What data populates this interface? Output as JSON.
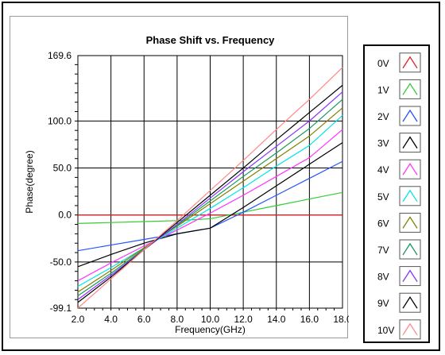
{
  "chart_data": {
    "type": "line",
    "title": "Phase Shift vs. Frequency",
    "xlabel": "Frequency(GHz)",
    "ylabel": "Phase(degree)",
    "xlim": [
      2.0,
      18.0
    ],
    "ylim": [
      -99.1,
      169.6
    ],
    "x_ticks": [
      "2.0",
      "4.0",
      "6.0",
      "8.0",
      "10.0",
      "12.0",
      "14.0",
      "16.0",
      "18.0"
    ],
    "y_ticks": [
      "169.6",
      "100.0",
      "50.0",
      "0.0",
      "-50.0",
      "-99.1"
    ],
    "grid": true,
    "legend_placement": "right",
    "x": [
      2,
      4,
      6,
      8,
      10,
      12,
      14,
      16,
      18
    ],
    "series": [
      {
        "name": "0V",
        "color": "#e02020",
        "values": [
          0,
          0,
          0,
          0,
          0,
          0,
          0,
          0,
          0
        ]
      },
      {
        "name": "1V",
        "color": "#33cc33",
        "values": [
          -9,
          -8,
          -7,
          -6,
          -4,
          3,
          10,
          17,
          24
        ]
      },
      {
        "name": "2V",
        "color": "#2255ff",
        "values": [
          -38,
          -32,
          -26,
          -20,
          -14,
          3,
          21,
          39,
          57
        ]
      },
      {
        "name": "3V",
        "color": "#000000",
        "values": [
          -55,
          -42,
          -30,
          -20,
          -14,
          8,
          31,
          54,
          77
        ]
      },
      {
        "name": "4V",
        "color": "#ff33ff",
        "values": [
          -70,
          -51,
          -33,
          -16,
          2,
          21,
          41,
          61,
          91
        ]
      },
      {
        "name": "5V",
        "color": "#00e5e5",
        "values": [
          -76,
          -56,
          -35,
          -14,
          7,
          29,
          52,
          74,
          106
        ]
      },
      {
        "name": "6V",
        "color": "#808000",
        "values": [
          -82,
          -59,
          -35,
          -12,
          12,
          36,
          60,
          84,
          114
        ]
      },
      {
        "name": "7V",
        "color": "#1a9a5a",
        "values": [
          -86,
          -62,
          -36,
          -11,
          15,
          41,
          66,
          92,
          123
        ]
      },
      {
        "name": "8V",
        "color": "#8833ff",
        "values": [
          -90,
          -64,
          -37,
          -10,
          18,
          46,
          73,
          100,
          131
        ]
      },
      {
        "name": "9V",
        "color": "#000000",
        "values": [
          -93,
          -66,
          -37,
          -8,
          21,
          50,
          80,
          109,
          138
        ]
      },
      {
        "name": "10V",
        "color": "#ff8888",
        "values": [
          -99,
          -68,
          -37,
          -6,
          26,
          58,
          91,
          123,
          157
        ]
      }
    ]
  }
}
